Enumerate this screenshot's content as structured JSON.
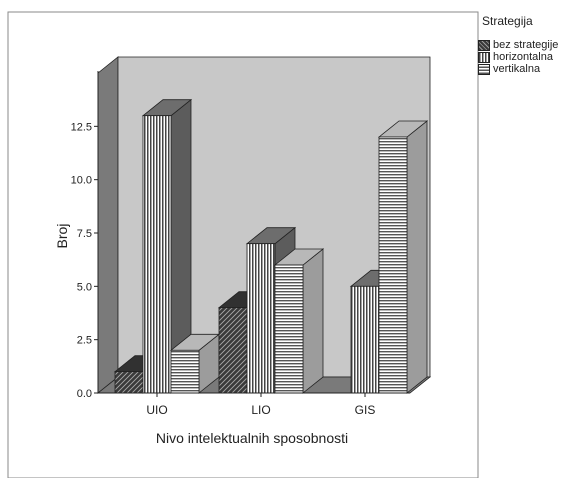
{
  "chart_data": {
    "type": "bar",
    "categories": [
      "UIO",
      "LIO",
      "GIS"
    ],
    "series": [
      {
        "name": "bez strategije",
        "values": [
          1,
          4,
          0
        ],
        "pattern": "diagonal",
        "color": "#3a3a3a"
      },
      {
        "name": "horizontalna",
        "values": [
          13,
          7,
          5
        ],
        "pattern": "vertical-lines",
        "color": "#808080"
      },
      {
        "name": "vertikalna",
        "values": [
          2,
          6,
          12
        ],
        "pattern": "horizontal-lines",
        "color": "#d8d8d8"
      }
    ],
    "xlabel": "Nivo intelektualnih sposobnosti",
    "ylabel": "Broj",
    "ylim": [
      0,
      15
    ],
    "yticks": [
      "0.0",
      "2.5",
      "5.0",
      "7.5",
      "10.0",
      "12.5"
    ],
    "legend_title": "Strategija",
    "legend_position": "right",
    "three_d": true,
    "background_color": "#c8c8c8",
    "floor_color": "#7a7a7a"
  }
}
